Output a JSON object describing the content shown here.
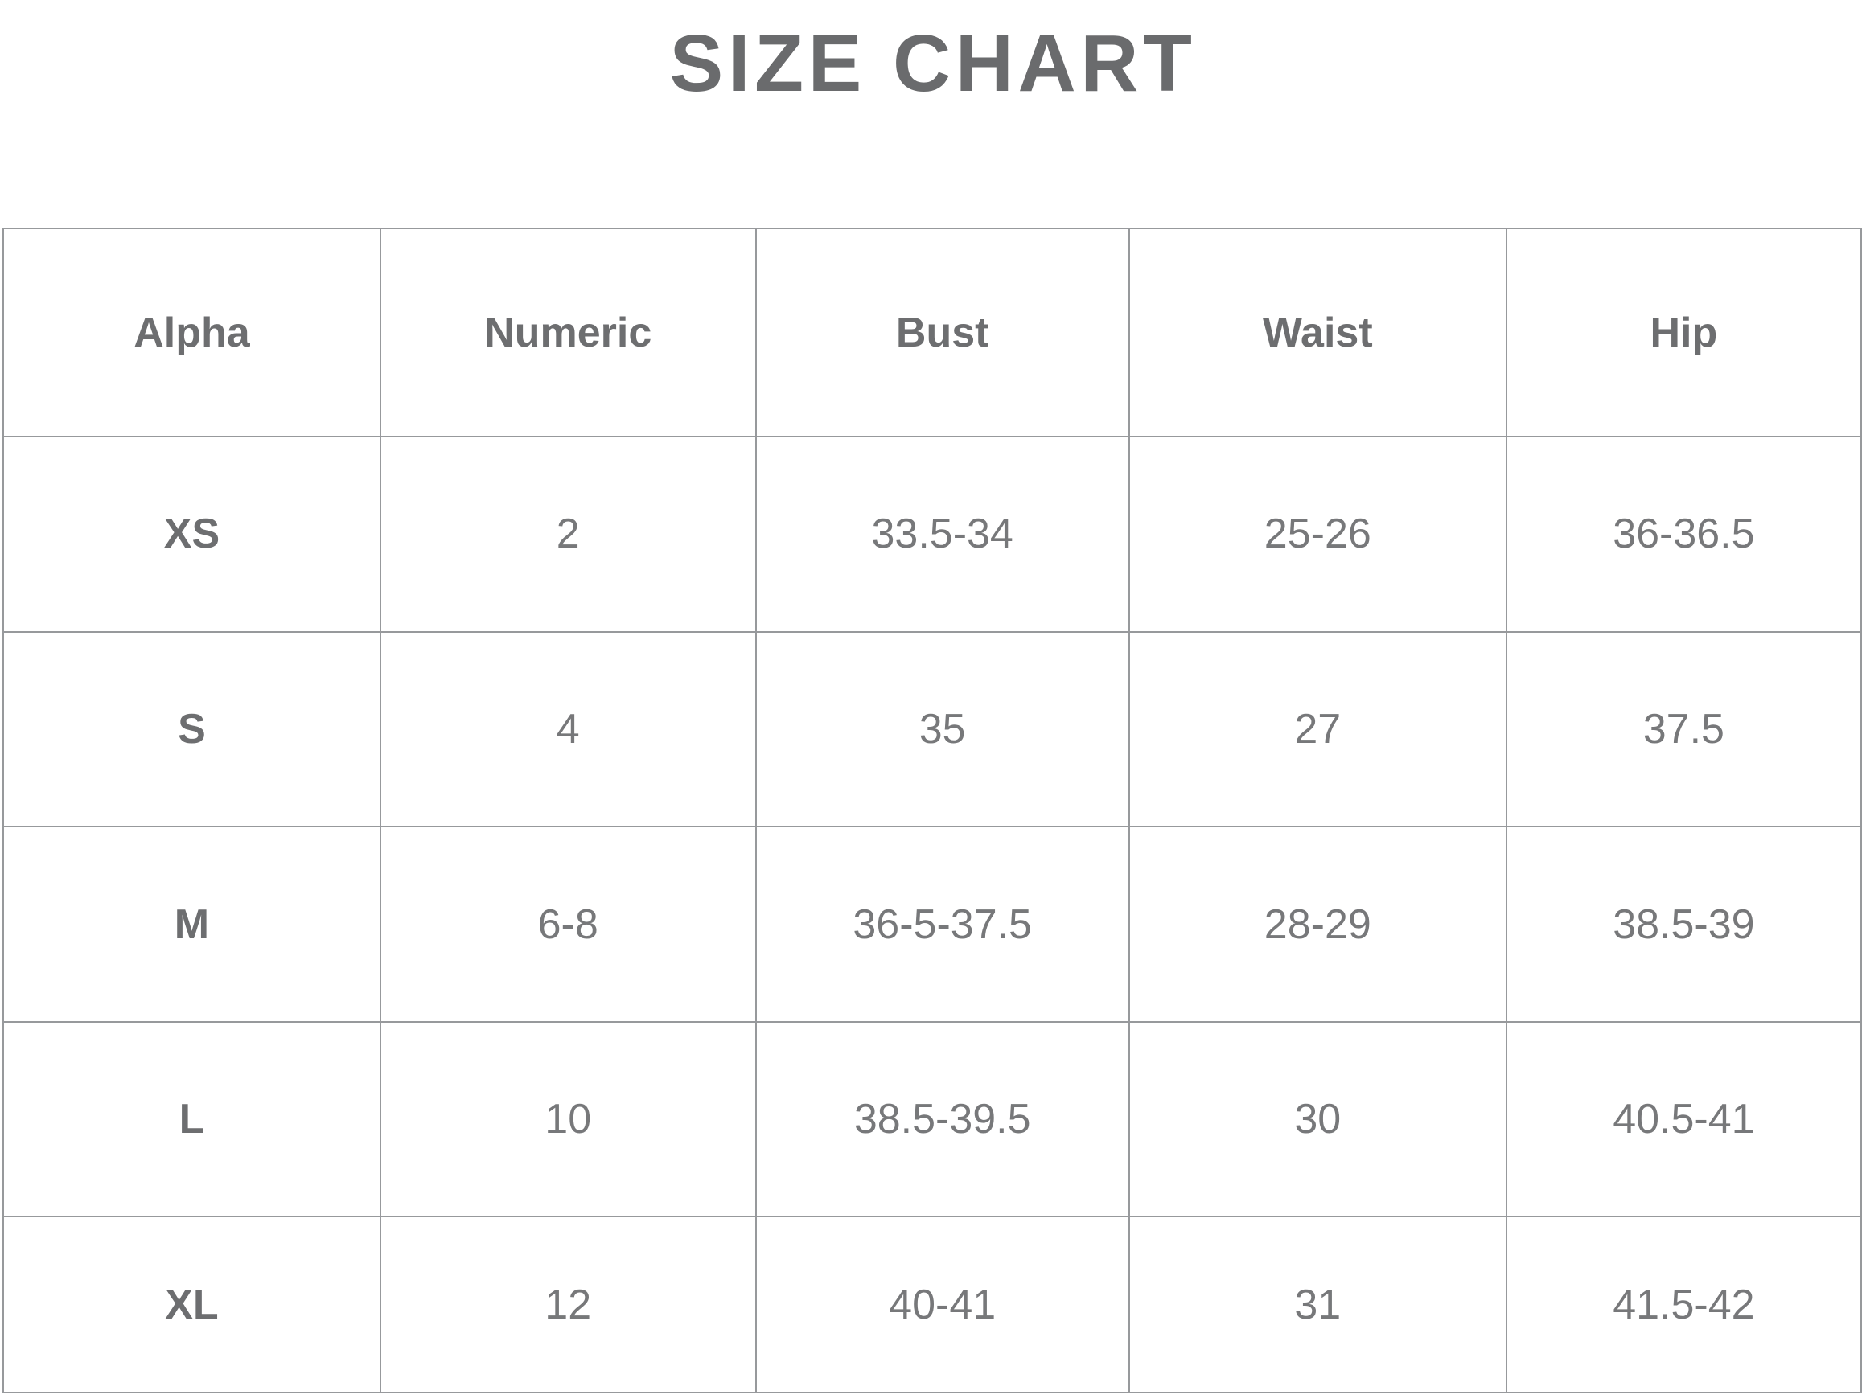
{
  "chart_data": {
    "type": "table",
    "title": "SIZE CHART",
    "columns": [
      "Alpha",
      "Numeric",
      "Bust",
      "Waist",
      "Hip"
    ],
    "rows": [
      [
        "XS",
        "2",
        "33.5-34",
        "25-26",
        "36-36.5"
      ],
      [
        "S",
        "4",
        "35",
        "27",
        "37.5"
      ],
      [
        "M",
        "6-8",
        "36-5-37.5",
        "28-29",
        "38.5-39"
      ],
      [
        "L",
        "10",
        "38.5-39.5",
        "30",
        "40.5-41"
      ],
      [
        "XL",
        "12",
        "40-41",
        "31",
        "41.5-42"
      ]
    ],
    "layout_hints": {
      "header_row_bold": true,
      "first_column_bold": true,
      "grid": true,
      "units_implied": "inches"
    }
  },
  "colors": {
    "title_text": "#6a6b6d",
    "header_text": "#6d6e70",
    "cell_text": "#77787a",
    "grid_border": "#97999c",
    "background": "#ffffff"
  }
}
